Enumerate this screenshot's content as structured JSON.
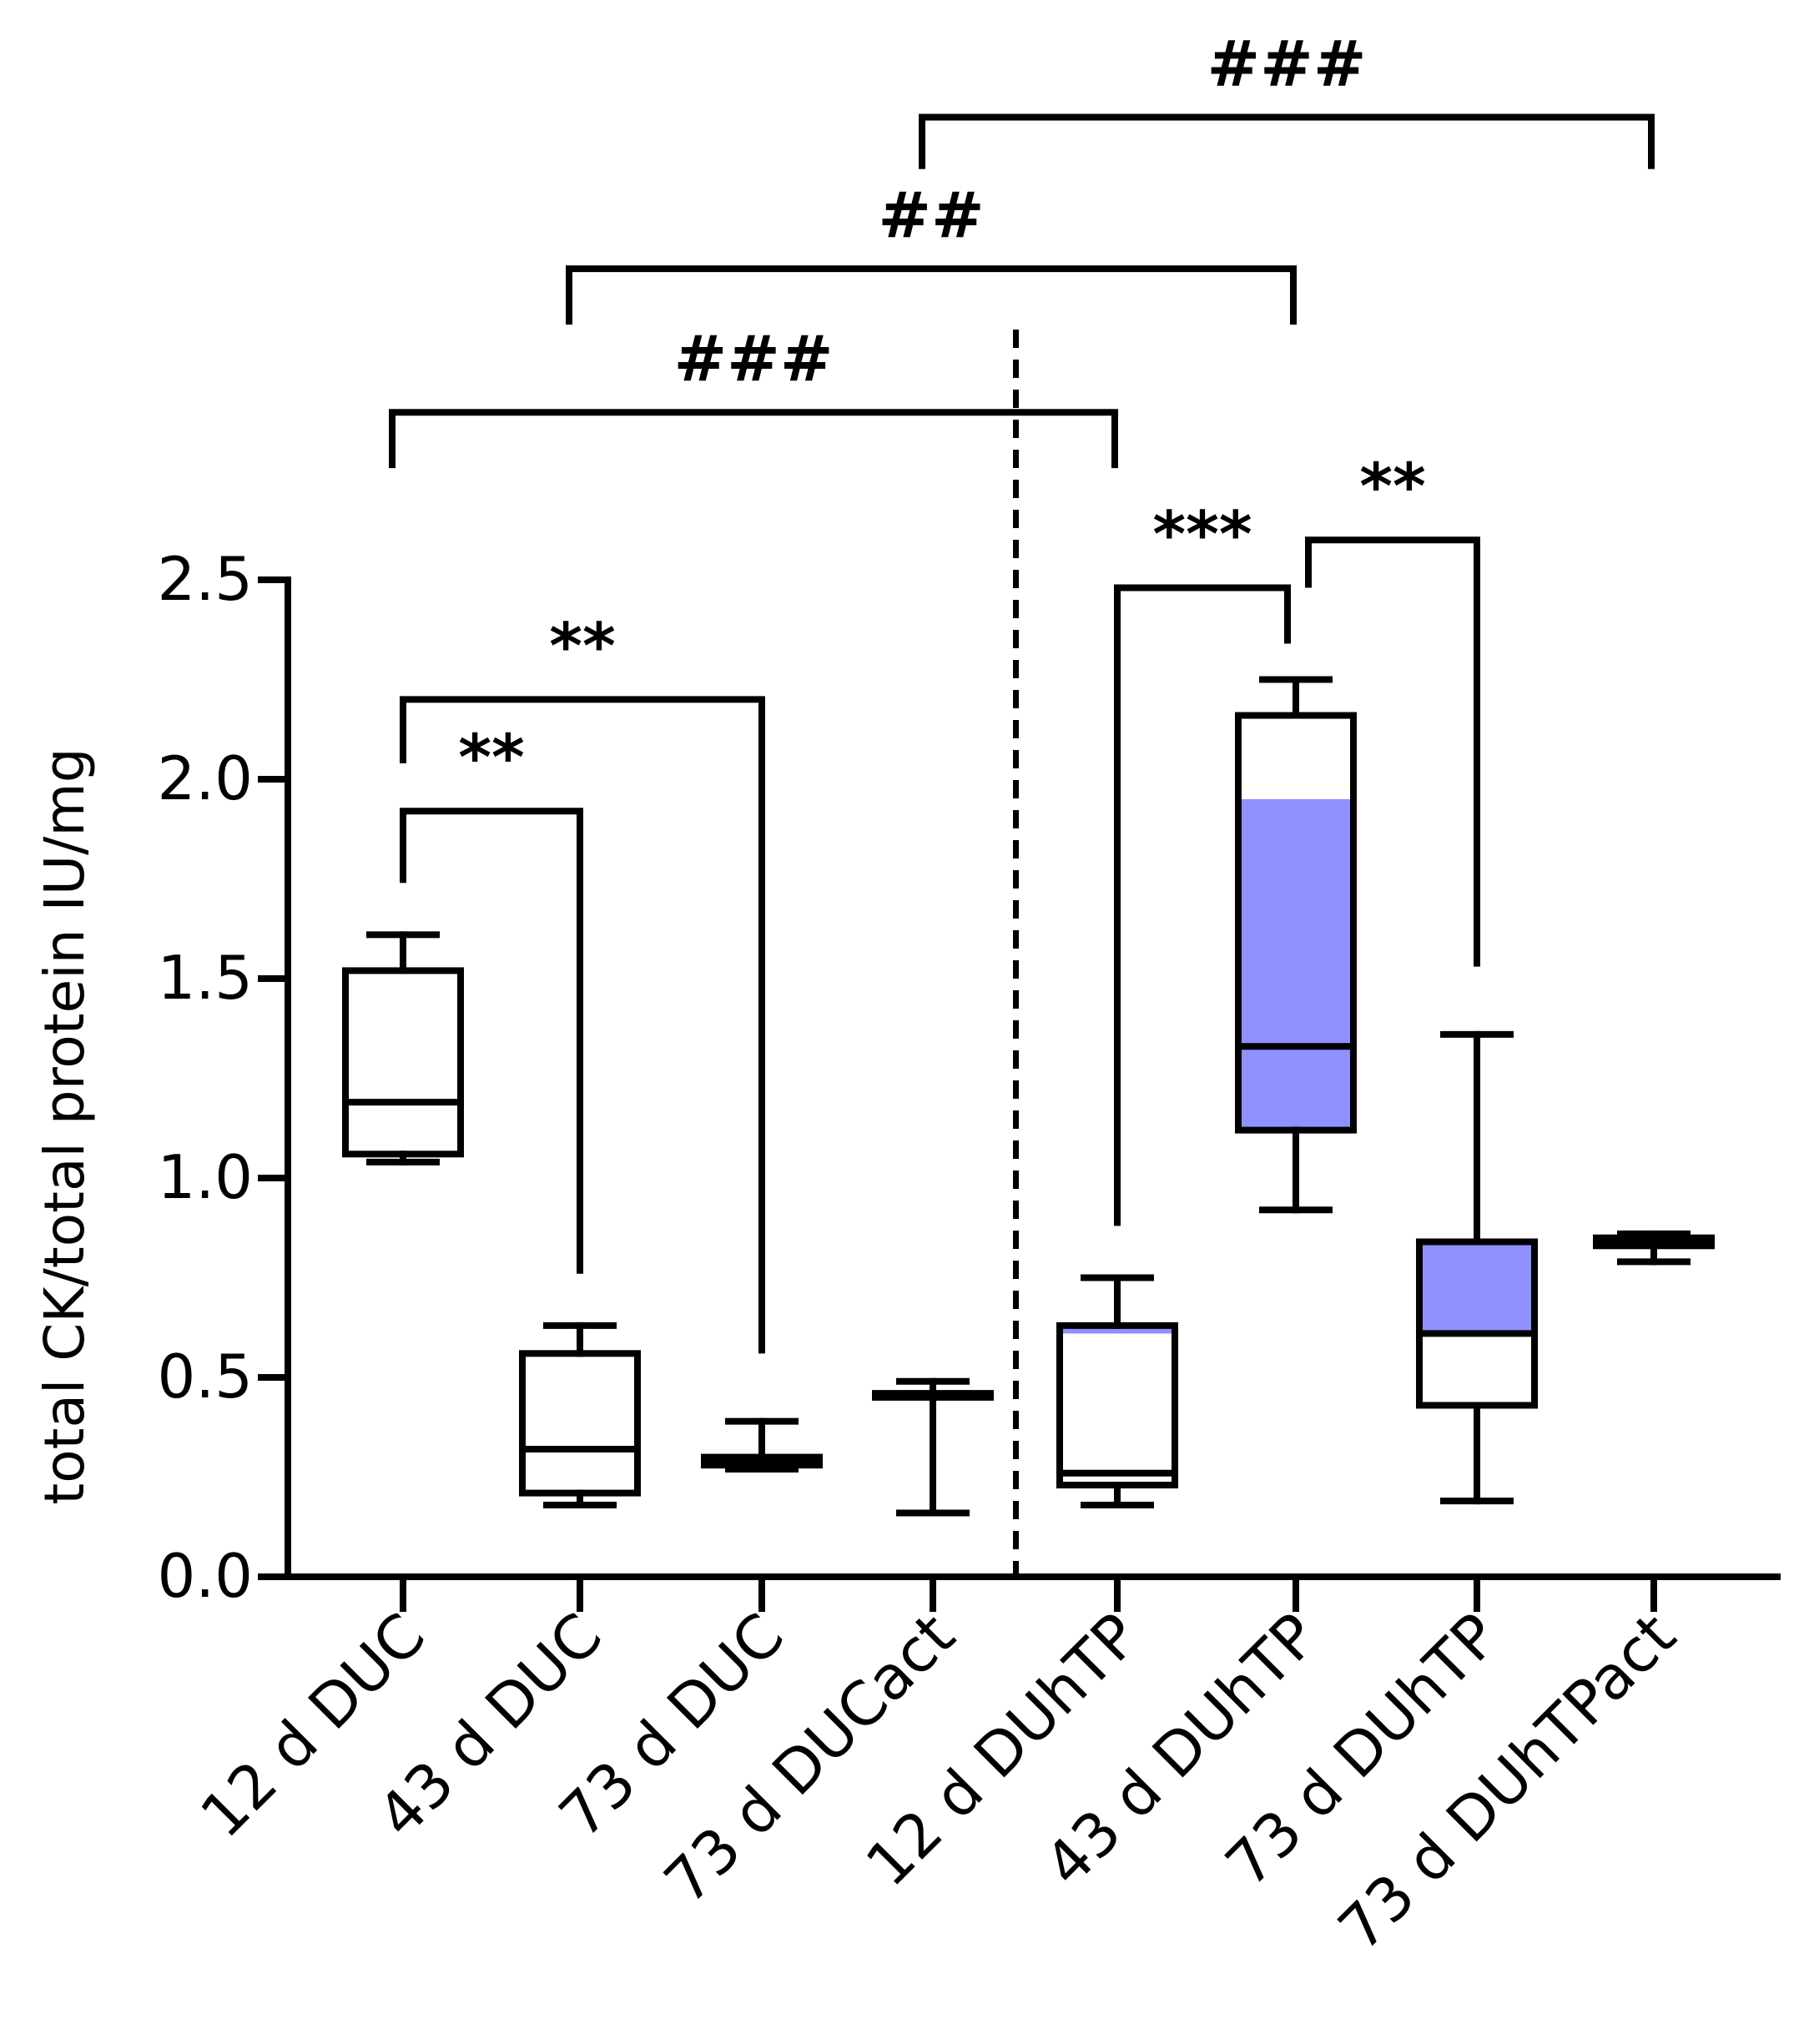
{
  "chart_data": {
    "type": "box",
    "title": "",
    "xlabel": "",
    "ylabel": "total CK/total protein IU/mg",
    "ylim": [
      0,
      2.5
    ],
    "yticks": [
      "0.0",
      "0.5",
      "1.0",
      "1.5",
      "2.0",
      "2.5"
    ],
    "categories": [
      "12 d DUC",
      "43 d DUC",
      "73 d DUC",
      "73 d DUCact",
      "12 d DUhTP",
      "43 d DUhTP",
      "73 d DUhTP",
      "73 d DUhTPact"
    ],
    "boxes": [
      {
        "category": "12 d DUC",
        "min": 1.04,
        "q1": 1.06,
        "median": 1.19,
        "q3": 1.52,
        "max": 1.61,
        "fill": "#ffffff",
        "shaded_range": null
      },
      {
        "category": "43 d DUC",
        "min": 0.18,
        "q1": 0.21,
        "median": 0.32,
        "q3": 0.56,
        "max": 0.63,
        "fill": "#ffffff",
        "shaded_range": null
      },
      {
        "category": "73 d DUC",
        "min": 0.27,
        "q1": 0.28,
        "median": 0.29,
        "q3": 0.3,
        "max": 0.39,
        "fill": "#ffffff",
        "shaded_range": null
      },
      {
        "category": "73 d DUCact",
        "min": 0.16,
        "q1": 0.45,
        "median": 0.455,
        "q3": 0.46,
        "max": 0.49,
        "fill": "#ffffff",
        "shaded_range": null
      },
      {
        "category": "12 d DUhTP",
        "min": 0.18,
        "q1": 0.23,
        "median": 0.26,
        "q3": 0.63,
        "max": 0.75,
        "fill": "#ffffff",
        "shaded_range": [
          0.61,
          0.63
        ]
      },
      {
        "category": "43 d DUhTP",
        "min": 0.92,
        "q1": 1.12,
        "median": 1.33,
        "q3": 2.16,
        "max": 2.25,
        "fill": "#ffffff",
        "shaded_range": [
          1.12,
          1.95
        ]
      },
      {
        "category": "73 d DUhTP",
        "min": 0.19,
        "q1": 0.43,
        "median": 0.61,
        "q3": 0.84,
        "max": 1.36,
        "fill": "#ffffff",
        "shaded_range": [
          0.61,
          0.84
        ]
      },
      {
        "category": "73 d DUhTPact",
        "min": 0.79,
        "q1": 0.83,
        "median": 0.84,
        "q3": 0.85,
        "max": 0.86,
        "fill": "#ffffff",
        "shaded_range": null
      }
    ],
    "shade_color": "#9090ff",
    "divider_after_category": "73 d DUCact",
    "significance": [
      {
        "from": "12 d DUC",
        "to": "43 d DUC",
        "label": "**",
        "from_value": 1.74,
        "to_value": 0.76,
        "top_value": 1.92
      },
      {
        "from": "12 d DUC",
        "to": "73 d DUC",
        "label": "**",
        "from_value": 2.04,
        "to_value": 0.56,
        "top_value": 2.2
      },
      {
        "from": "12 d DUhTP",
        "to": "43 d DUhTP",
        "label": "***",
        "from_value": 0.88,
        "to_value": 2.34,
        "top_value": 2.48
      },
      {
        "from": "43 d DUhTP",
        "to": "73 d DUhTP",
        "label": "**",
        "from_value": 2.48,
        "to_value": 1.53,
        "top_value": 2.6
      },
      {
        "from": "12 d DUC",
        "to": "12 d DUhTP",
        "label": "###",
        "from_value": 2.78,
        "to_value": 2.78,
        "top_value": 2.92
      },
      {
        "from": "43 d DUC",
        "to": "43 d DUhTP",
        "label": "##",
        "from_value": 3.14,
        "to_value": 3.14,
        "top_value": 3.28
      },
      {
        "from": "73 d DUCact",
        "to": "73 d DUhTPact",
        "label": "###",
        "from_value": 3.53,
        "to_value": 3.53,
        "top_value": 3.66
      }
    ]
  }
}
